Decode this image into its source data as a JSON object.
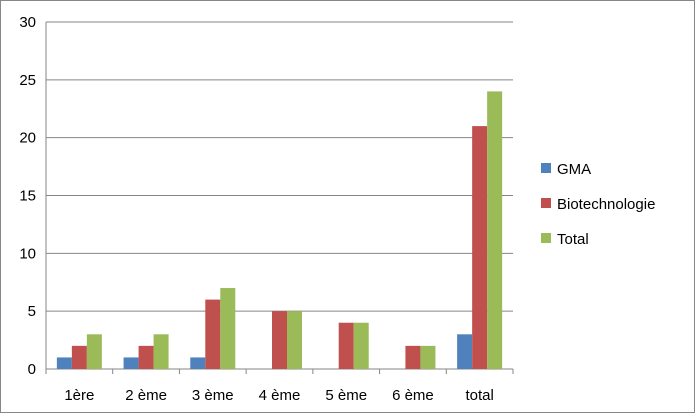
{
  "chart_data": {
    "type": "bar",
    "categories": [
      "1ère",
      "2 ème",
      "3 ème",
      "4 ème",
      "5 ème",
      "6 ème",
      "total"
    ],
    "series": [
      {
        "name": "GMA",
        "values": [
          1,
          1,
          1,
          0,
          0,
          0,
          3
        ],
        "color": "#4f81bd"
      },
      {
        "name": "Biotechnologie",
        "values": [
          2,
          2,
          6,
          5,
          4,
          2,
          21
        ],
        "color": "#c0504d"
      },
      {
        "name": "Total",
        "values": [
          3,
          3,
          7,
          5,
          4,
          2,
          24
        ],
        "color": "#9bbb59"
      }
    ],
    "title": "",
    "xlabel": "",
    "ylabel": "",
    "ylim": [
      0,
      30
    ],
    "yticks": [
      0,
      5,
      10,
      15,
      20,
      25,
      30
    ],
    "grid": true,
    "legend_position": "right"
  }
}
